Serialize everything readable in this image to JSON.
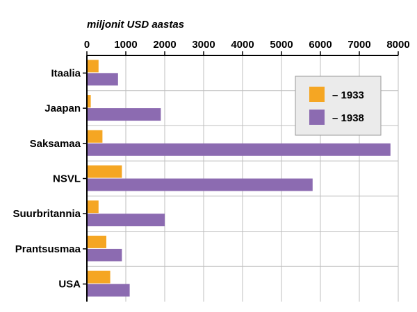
{
  "chart_data": {
    "type": "bar",
    "orientation": "horizontal",
    "unit_label": "miljonit USD aastas",
    "categories": [
      "Itaalia",
      "Jaapan",
      "Saksamaa",
      "NSVL",
      "Suurbritannia",
      "Prantsusmaa",
      "USA"
    ],
    "series": [
      {
        "name": "– 1933",
        "color": "#f5a623",
        "values": [
          300,
          100,
          400,
          900,
          300,
          500,
          600
        ]
      },
      {
        "name": "– 1938",
        "color": "#8c6bb1",
        "values": [
          800,
          1900,
          7800,
          5800,
          2000,
          900,
          1100
        ]
      }
    ],
    "xlim": [
      0,
      8000
    ],
    "xticks": [
      0,
      1000,
      2000,
      3000,
      4000,
      5000,
      6000,
      7000,
      8000
    ],
    "xaxis_position": "top",
    "grid": "vertical",
    "legend_position": "top-right"
  }
}
